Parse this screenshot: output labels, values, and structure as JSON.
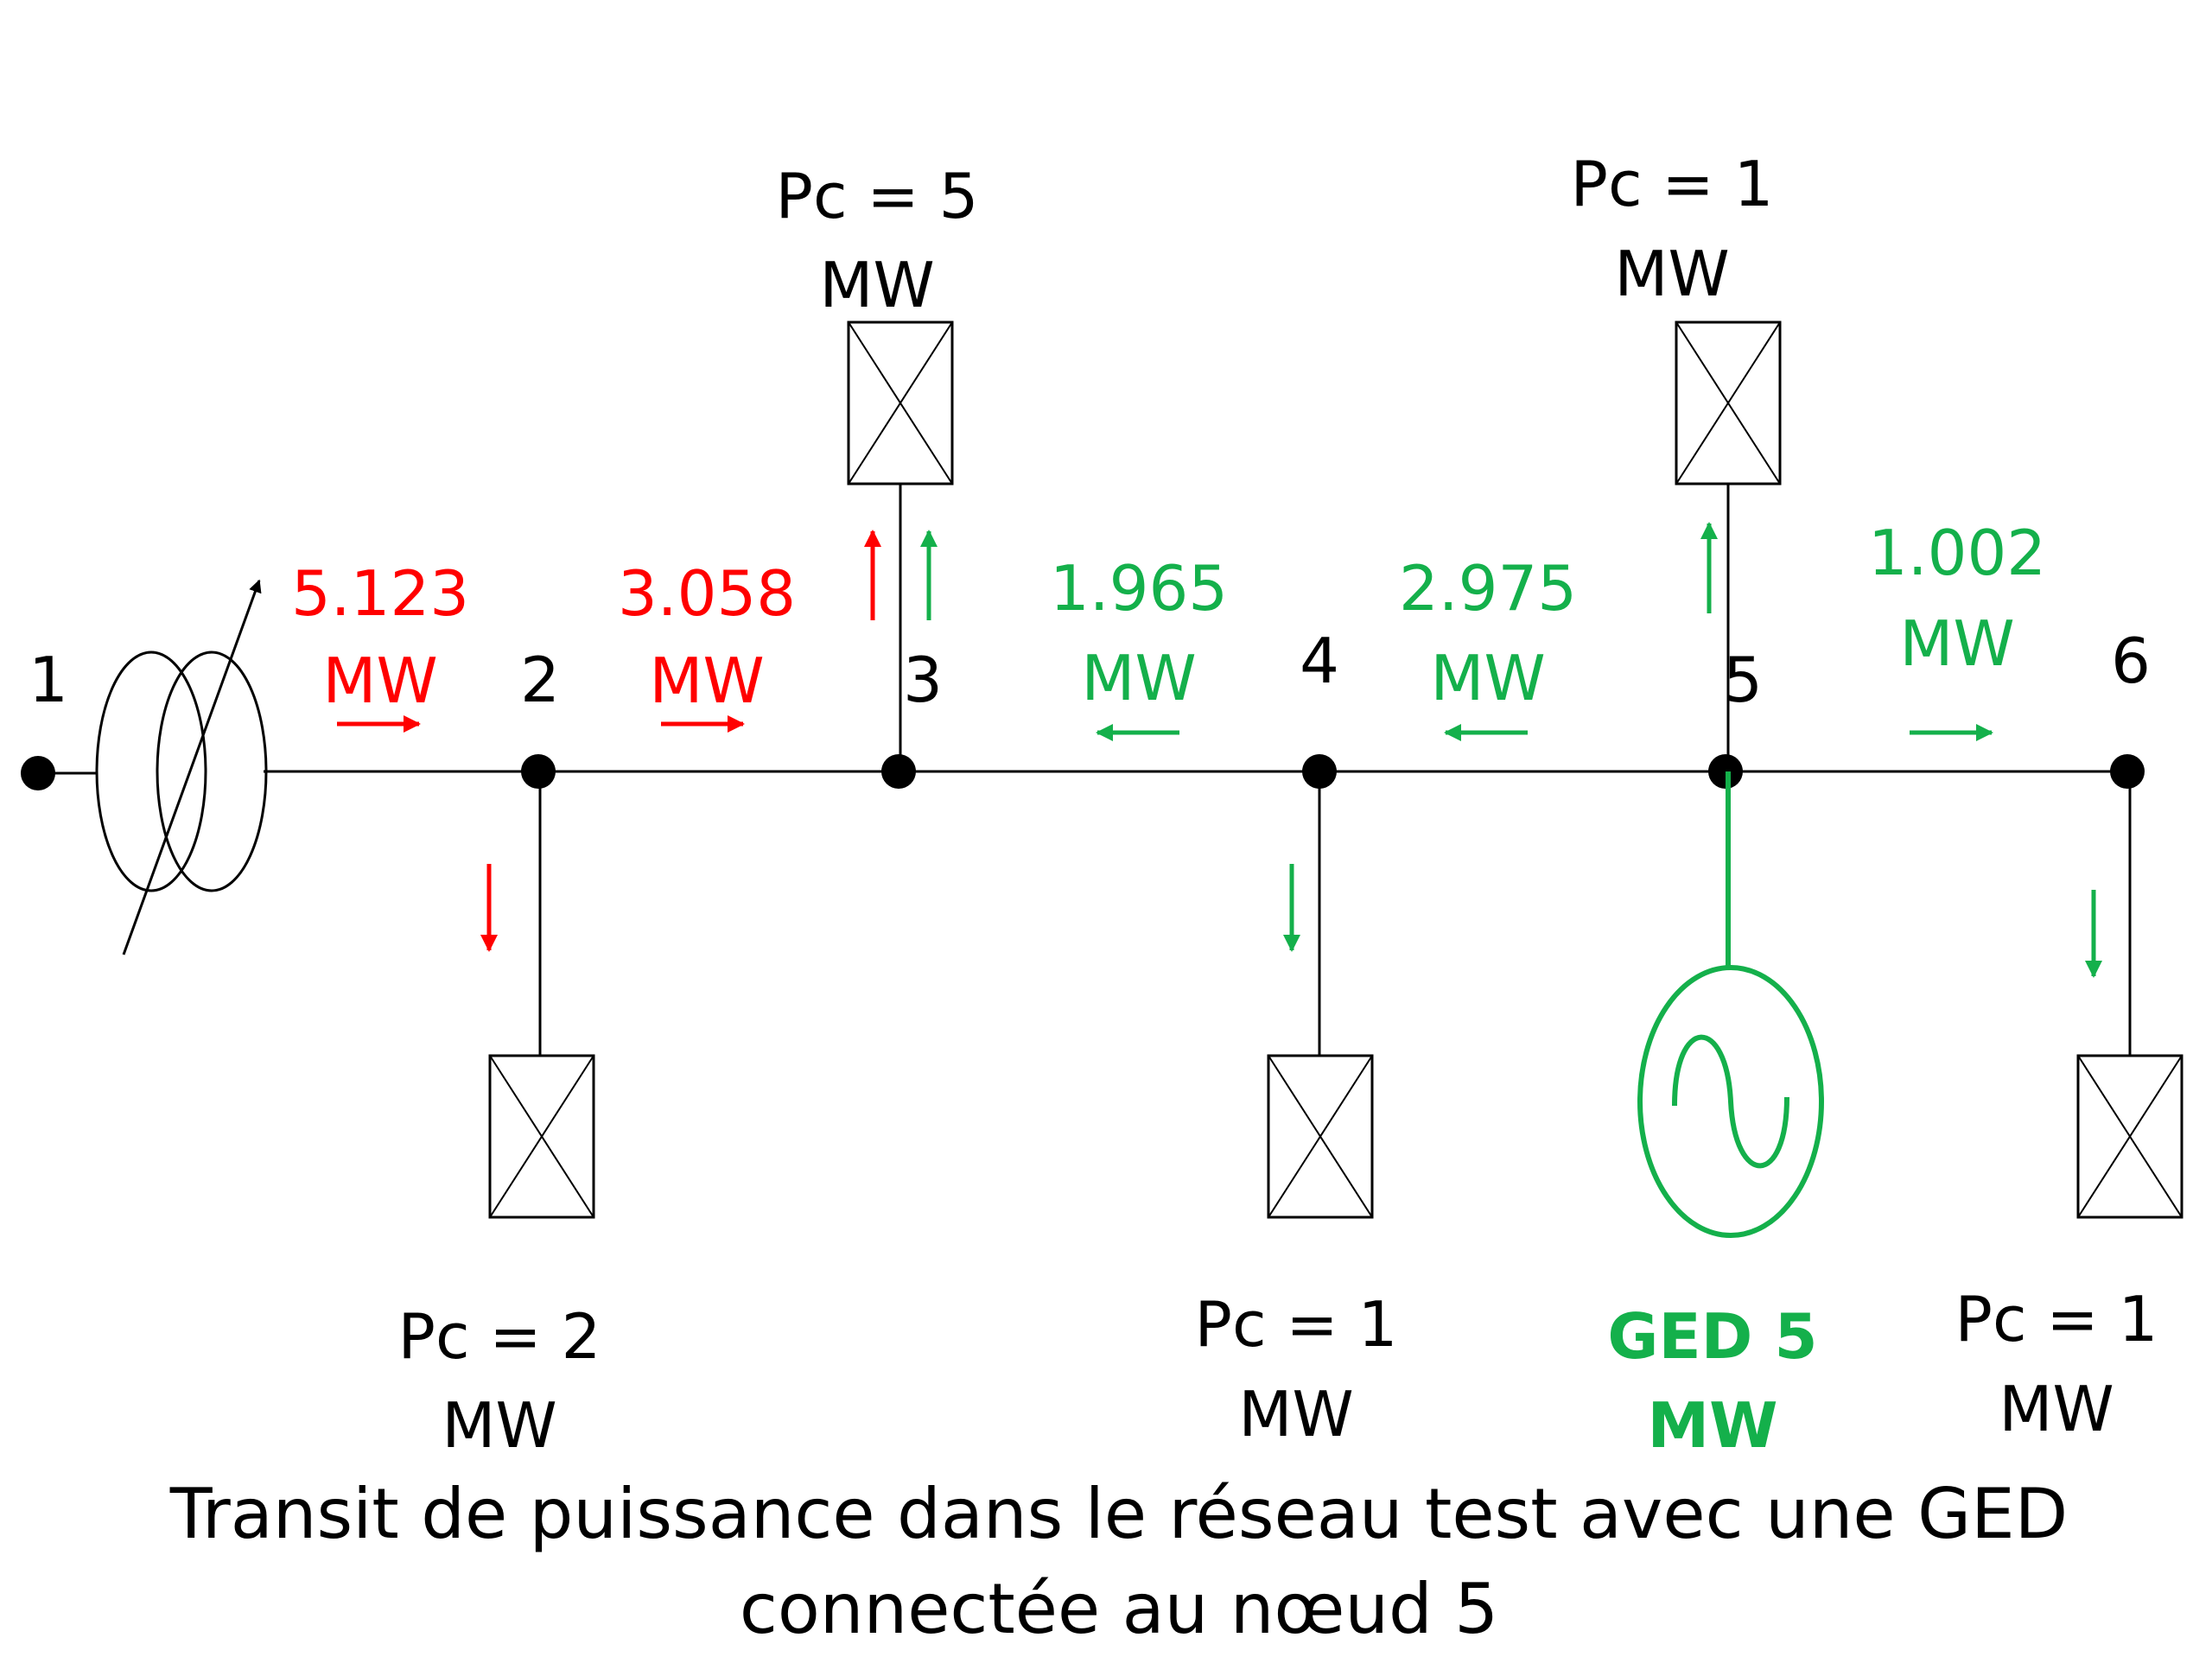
{
  "colors": {
    "upstream": "#ff0000",
    "ged": "#14b04b",
    "line": "#000000"
  },
  "nodes": [
    "1",
    "2",
    "3",
    "4",
    "5",
    "6"
  ],
  "flows": [
    {
      "value": "5.123",
      "unit": "MW",
      "color": "red",
      "direction": "right"
    },
    {
      "value": "3.058",
      "unit": "MW",
      "color": "red",
      "direction": "right"
    },
    {
      "value": "1.965",
      "unit": "MW",
      "color": "green",
      "direction": "left"
    },
    {
      "value": "2.975",
      "unit": "MW",
      "color": "green",
      "direction": "left"
    },
    {
      "value": "1.002",
      "unit": "MW",
      "color": "green",
      "direction": "right"
    }
  ],
  "loads": [
    {
      "node": "2",
      "line1": "Pc = 2",
      "line2": "MW"
    },
    {
      "node": "3",
      "line1": "Pc = 5",
      "line2": "MW"
    },
    {
      "node": "4",
      "line1": "Pc = 1",
      "line2": "MW"
    },
    {
      "node": "5",
      "line1": "Pc = 1",
      "line2": "MW"
    },
    {
      "node": "6",
      "line1": "Pc = 1",
      "line2": "MW"
    }
  ],
  "generator": {
    "line1": "GED 5",
    "line2": "MW"
  },
  "caption": {
    "line1": "Transit de puissance dans le réseau test avec une GED",
    "line2": "connectée au nœud 5"
  }
}
